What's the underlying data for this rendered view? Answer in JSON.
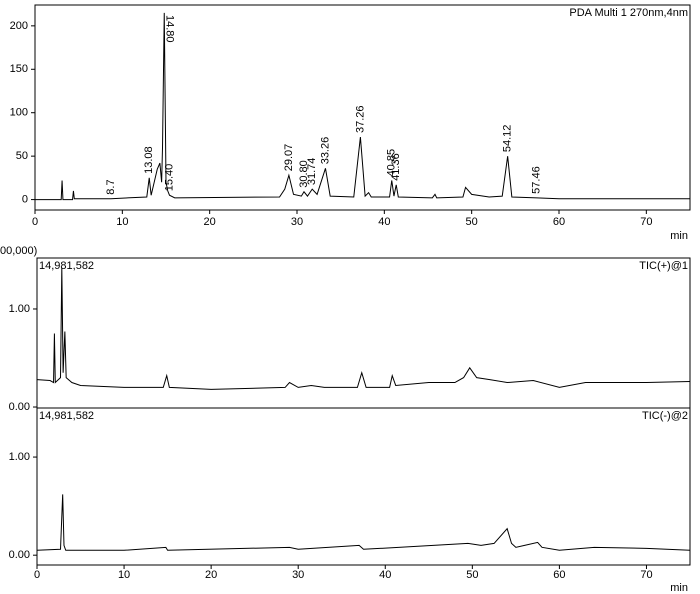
{
  "chart_data": [
    {
      "type": "line",
      "title": "PDA Multi 1 270nm,4nm",
      "x_label": "min",
      "color": "#000000",
      "xlim": [
        0,
        75
      ],
      "ylim": [
        -12,
        224
      ],
      "xticks": [
        0,
        10,
        20,
        30,
        40,
        50,
        60,
        70
      ],
      "yticks": [
        0,
        50,
        100,
        150,
        200
      ],
      "x": [
        0,
        3,
        3.1,
        3.2,
        4.3,
        4.4,
        4.5,
        8.7,
        12.8,
        13.08,
        13.3,
        14.0,
        14.3,
        14.5,
        14.6,
        14.8,
        15.0,
        15.2,
        15.4,
        16,
        28,
        28.6,
        29.07,
        29.6,
        30.5,
        30.8,
        31.2,
        31.74,
        32.3,
        33.26,
        33.8,
        36.5,
        37.26,
        37.8,
        38.2,
        38.5,
        40.6,
        40.85,
        41.1,
        41.36,
        41.6,
        45.5,
        45.8,
        46,
        49,
        49.3,
        50,
        52,
        53.5,
        54.12,
        54.6,
        57.46,
        60,
        75
      ],
      "values": [
        0,
        0,
        22,
        0,
        0,
        10,
        1,
        1,
        3,
        25,
        5,
        35,
        42,
        20,
        60,
        215,
        20,
        10,
        5,
        2,
        3,
        12,
        28,
        6,
        4,
        9,
        4,
        12,
        6,
        36,
        4,
        3,
        72,
        4,
        8,
        3,
        3,
        22,
        4,
        17,
        3,
        2,
        6,
        2,
        3,
        14,
        6,
        3,
        4,
        50,
        3,
        2,
        1,
        1
      ],
      "annotations": [
        {
          "label": "8.7",
          "x": 8.7
        },
        {
          "label": "13.08",
          "x": 13.08
        },
        {
          "label": "14.80",
          "x": 14.8
        },
        {
          "label": "15.40",
          "x": 15.4
        },
        {
          "label": "29.07",
          "x": 29.07
        },
        {
          "label": "30.80",
          "x": 30.8
        },
        {
          "label": "31.74",
          "x": 31.74
        },
        {
          "label": "33.26",
          "x": 33.26
        },
        {
          "label": "37.26",
          "x": 37.26
        },
        {
          "label": "40.85",
          "x": 40.85
        },
        {
          "label": "41.36",
          "x": 41.36
        },
        {
          "label": "54.12",
          "x": 54.12
        },
        {
          "label": "57.46",
          "x": 57.46
        }
      ]
    },
    {
      "type": "line",
      "title": "TIC(+)@1",
      "scale_label": "00,000)",
      "max_label": "14,981,582",
      "color": "#000000",
      "xlim": [
        0,
        75
      ],
      "ylim": [
        -0.01,
        1.52
      ],
      "yticks": [
        {
          "value": 0,
          "label": "0.00"
        },
        {
          "value": 1,
          "label": "1.00"
        }
      ],
      "x": [
        0,
        1.5,
        1.9,
        2.0,
        2.1,
        2.7,
        2.85,
        3.0,
        3.2,
        3.35,
        4,
        5,
        10,
        14.5,
        14.9,
        15.2,
        20,
        28.5,
        29,
        30,
        31.5,
        33,
        36.8,
        37.3,
        37.8,
        40.5,
        40.8,
        41.2,
        45,
        48,
        49,
        49.7,
        50.5,
        52,
        54,
        57,
        60,
        63,
        70,
        75
      ],
      "values": [
        0.28,
        0.27,
        0.25,
        0.75,
        0.25,
        0.3,
        1.42,
        0.35,
        0.77,
        0.3,
        0.25,
        0.22,
        0.2,
        0.2,
        0.32,
        0.2,
        0.18,
        0.2,
        0.25,
        0.2,
        0.22,
        0.2,
        0.2,
        0.35,
        0.2,
        0.2,
        0.32,
        0.22,
        0.25,
        0.25,
        0.3,
        0.4,
        0.3,
        0.28,
        0.25,
        0.27,
        0.2,
        0.25,
        0.25,
        0.26
      ]
    },
    {
      "type": "line",
      "title": "TIC(-)@2",
      "max_label": "14,981,582",
      "x_label": "min",
      "color": "#000000",
      "xlim": [
        0,
        75
      ],
      "ylim": [
        -0.1,
        1.5
      ],
      "xticks": [
        0,
        10,
        20,
        30,
        40,
        50,
        60,
        70
      ],
      "yticks": [
        {
          "value": 0,
          "label": "0.00"
        },
        {
          "value": 1,
          "label": "1.00"
        }
      ],
      "x": [
        0,
        2.7,
        2.95,
        3.1,
        3.3,
        10,
        14.8,
        15,
        29,
        30,
        37,
        37.5,
        49.5,
        51,
        52.5,
        54,
        54.5,
        55,
        56,
        57.5,
        58,
        60,
        64,
        70,
        75
      ],
      "values": [
        0.05,
        0.06,
        0.62,
        0.1,
        0.05,
        0.05,
        0.08,
        0.05,
        0.08,
        0.06,
        0.1,
        0.06,
        0.12,
        0.1,
        0.12,
        0.27,
        0.12,
        0.08,
        0.1,
        0.13,
        0.08,
        0.05,
        0.08,
        0.07,
        0.05
      ]
    }
  ]
}
